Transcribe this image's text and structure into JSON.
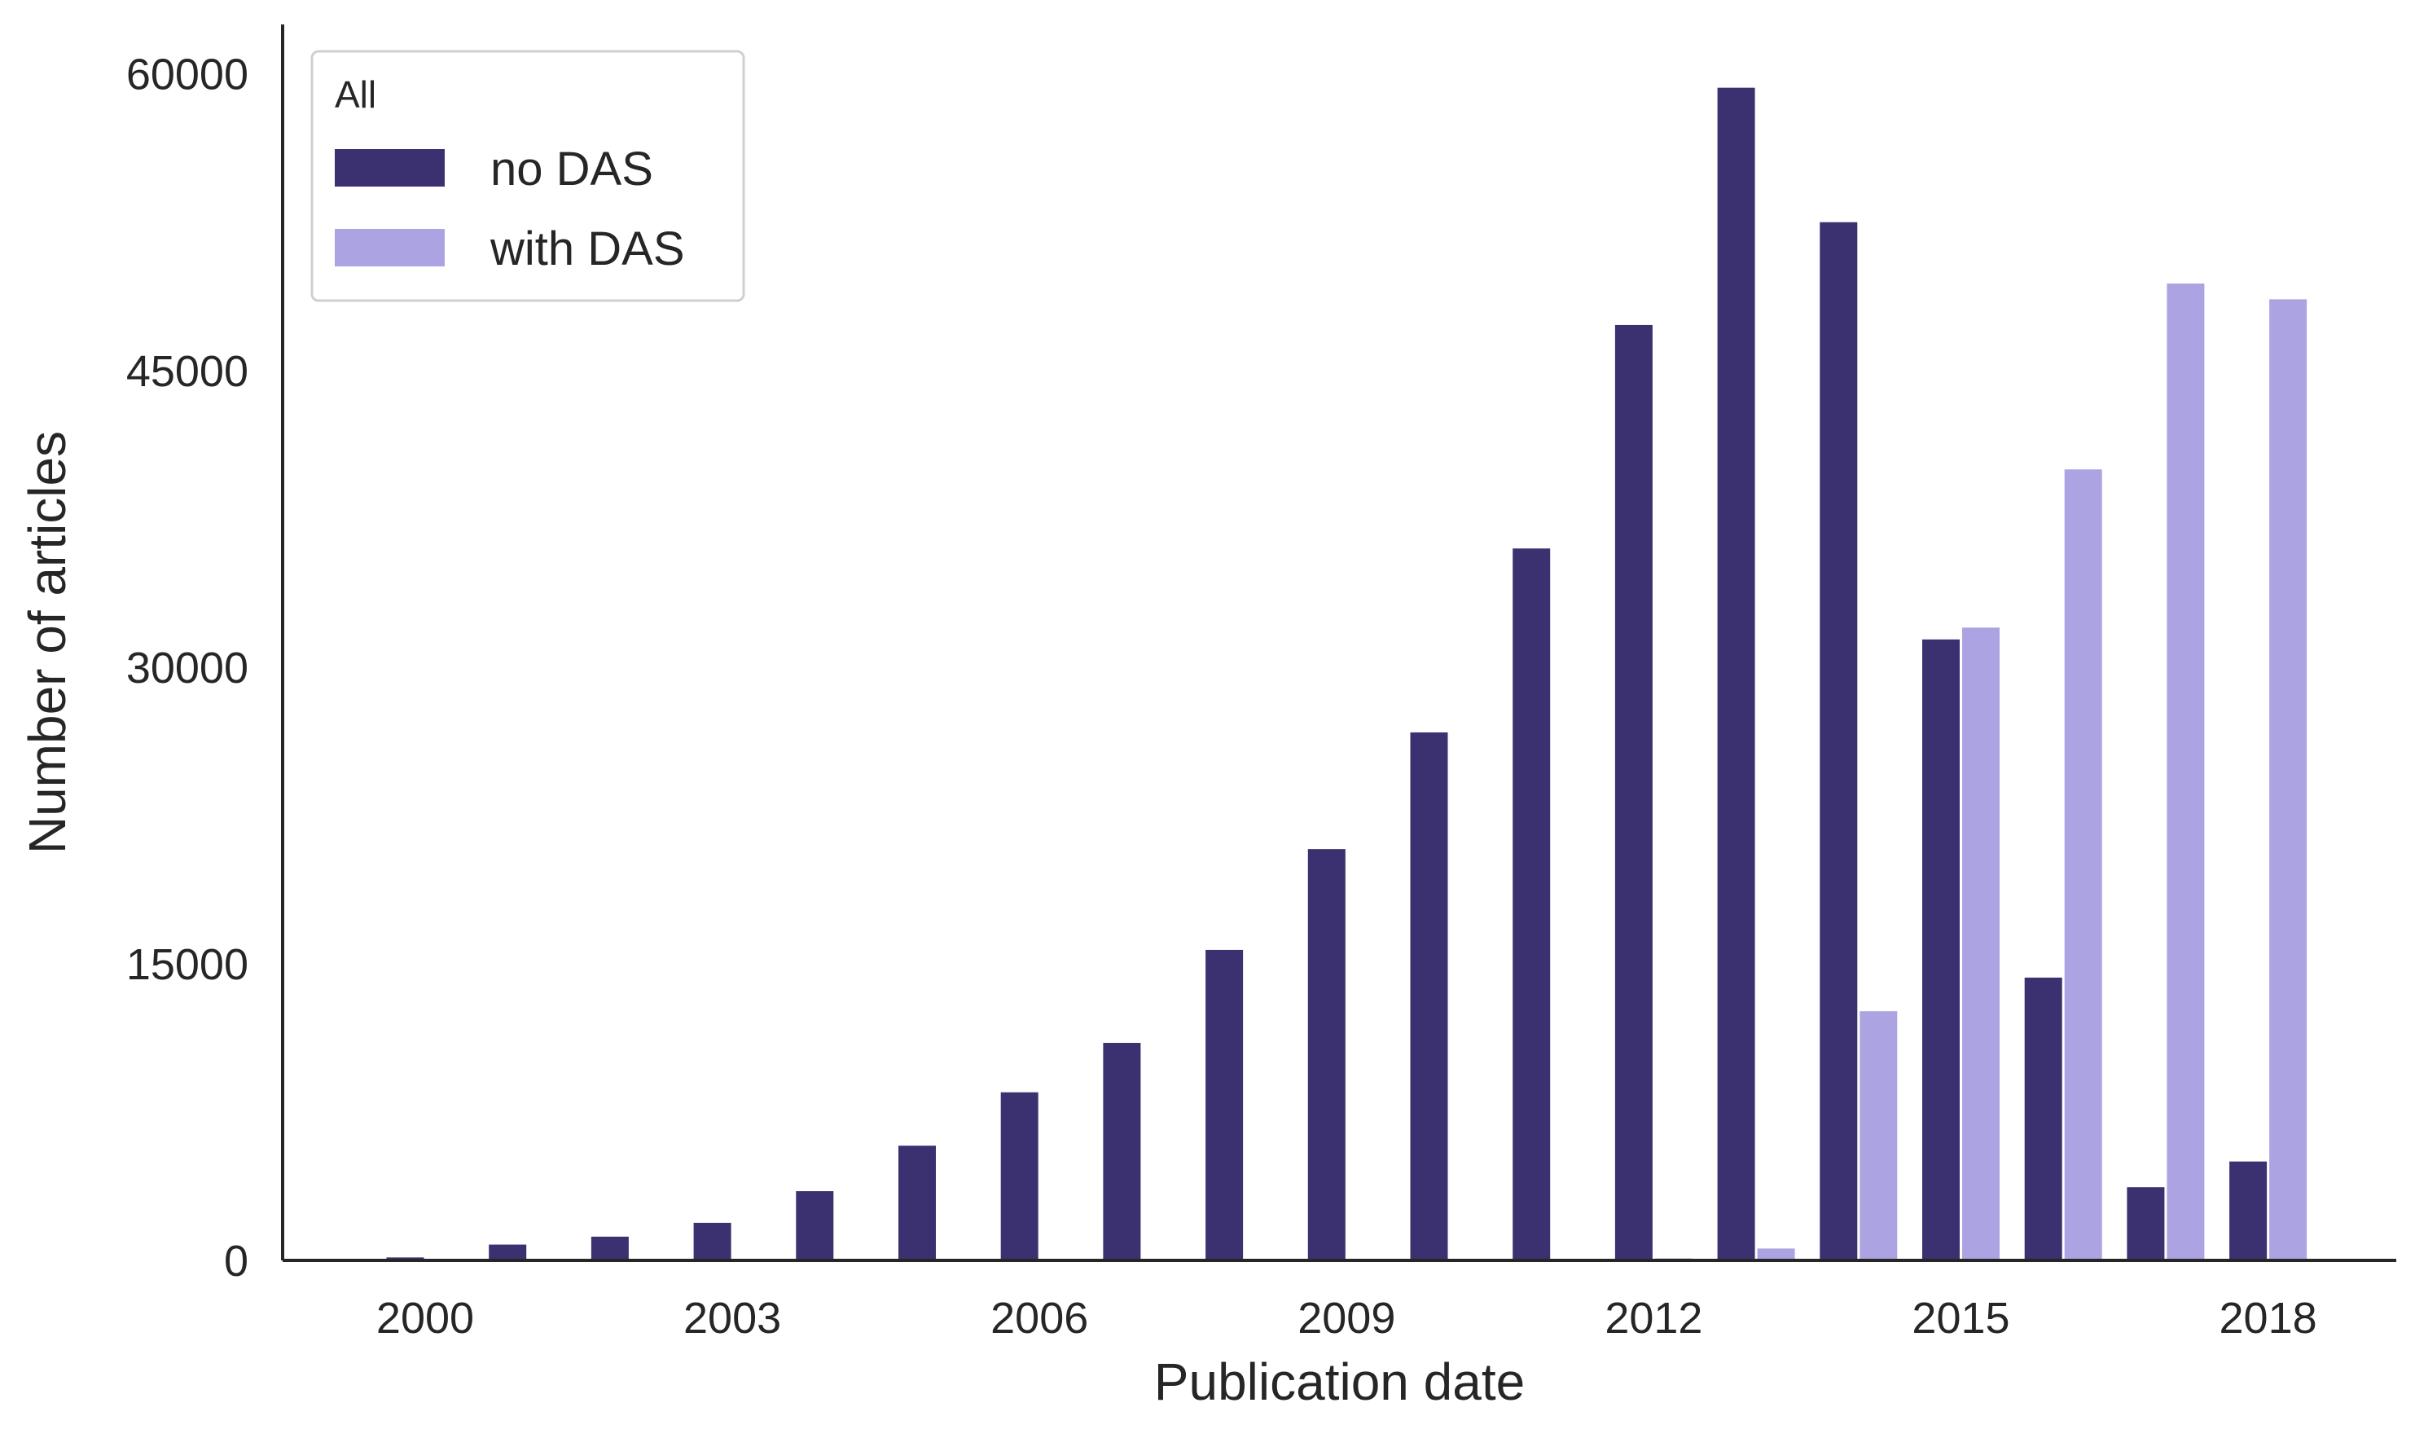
{
  "chart_data": {
    "type": "bar",
    "title": "",
    "xlabel": "Publication date",
    "ylabel": "Number of articles",
    "x": [
      2000,
      2001,
      2002,
      2003,
      2004,
      2005,
      2006,
      2007,
      2008,
      2009,
      2010,
      2011,
      2012,
      2013,
      2014,
      2015,
      2016,
      2017,
      2018
    ],
    "x_tick_labels": [
      "2000",
      "2003",
      "2006",
      "2009",
      "2012",
      "2015",
      "2018"
    ],
    "y_ticks": [
      0,
      15000,
      30000,
      45000,
      60000
    ],
    "y_tick_labels": [
      "0",
      "15000",
      "30000",
      "45000",
      "60000"
    ],
    "ylim": [
      0,
      62500
    ],
    "grid": false,
    "legend": {
      "title": "All",
      "placement": "top-left"
    },
    "series": [
      {
        "name": "no DAS",
        "color": "#3b3170",
        "values": [
          150,
          800,
          1200,
          1900,
          3500,
          5800,
          8500,
          11000,
          15700,
          20800,
          26700,
          36000,
          47300,
          59300,
          52500,
          31400,
          14300,
          3700,
          5000
        ]
      },
      {
        "name": "with DAS",
        "color": "#aca4e2",
        "values": [
          0,
          0,
          0,
          0,
          0,
          0,
          0,
          0,
          0,
          0,
          0,
          0,
          100,
          600,
          12600,
          32000,
          40000,
          49400,
          48600
        ]
      }
    ]
  }
}
